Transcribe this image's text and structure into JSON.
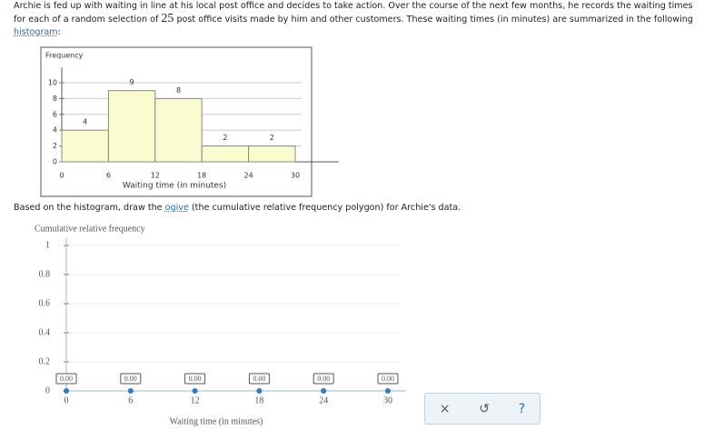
{
  "problem": {
    "intro": [
      "Archie is fed up with waiting in line at his local post office and decides to take action. Over the course of the next few months, he records the waiting times for each of a random selection of",
      "25",
      "post office visits made by him and other customers. These waiting times (in minutes) are summarized in the following",
      "histogram",
      ":"
    ],
    "instruction": [
      "Based on the histogram, draw the",
      "ogive",
      "(the cumulative relative frequency polygon) for Archie's data."
    ],
    "buttons": [
      "×",
      "↺",
      "?"
    ]
  },
  "chart_data": [
    {
      "type": "histogram",
      "ylabel": "Frequency",
      "xlabel": "Waiting time (in minutes)",
      "bins": [
        0,
        6,
        12,
        18,
        24,
        30
      ],
      "values": [
        4,
        9,
        8,
        2,
        2
      ],
      "color": "#fbfbd0",
      "xlim": [
        0,
        33
      ],
      "xticks": [
        0,
        6,
        12,
        18,
        24,
        30
      ],
      "ylim": [
        0,
        11
      ],
      "yticks": [
        0,
        2,
        4,
        6,
        8,
        10
      ],
      "grid": true
    },
    {
      "type": "line",
      "ylabel": "Cumulative relative frequency",
      "xlabel": "Waiting time (in minutes)",
      "x": [
        0,
        6,
        12,
        18,
        24,
        30
      ],
      "values": [
        0,
        0,
        0,
        0,
        0,
        0
      ],
      "value_labels": [
        "0.00",
        "0.00",
        "0.00",
        "0.00",
        "0.00",
        "0.00"
      ],
      "color": "#2f7dc1",
      "xlim": [
        0,
        31
      ],
      "xticks": [
        0,
        6,
        12,
        18,
        24,
        30
      ],
      "ylim": [
        0,
        1
      ],
      "yticks": [
        0,
        0.2,
        0.4,
        0.6,
        0.8,
        1
      ],
      "grid": true
    }
  ]
}
